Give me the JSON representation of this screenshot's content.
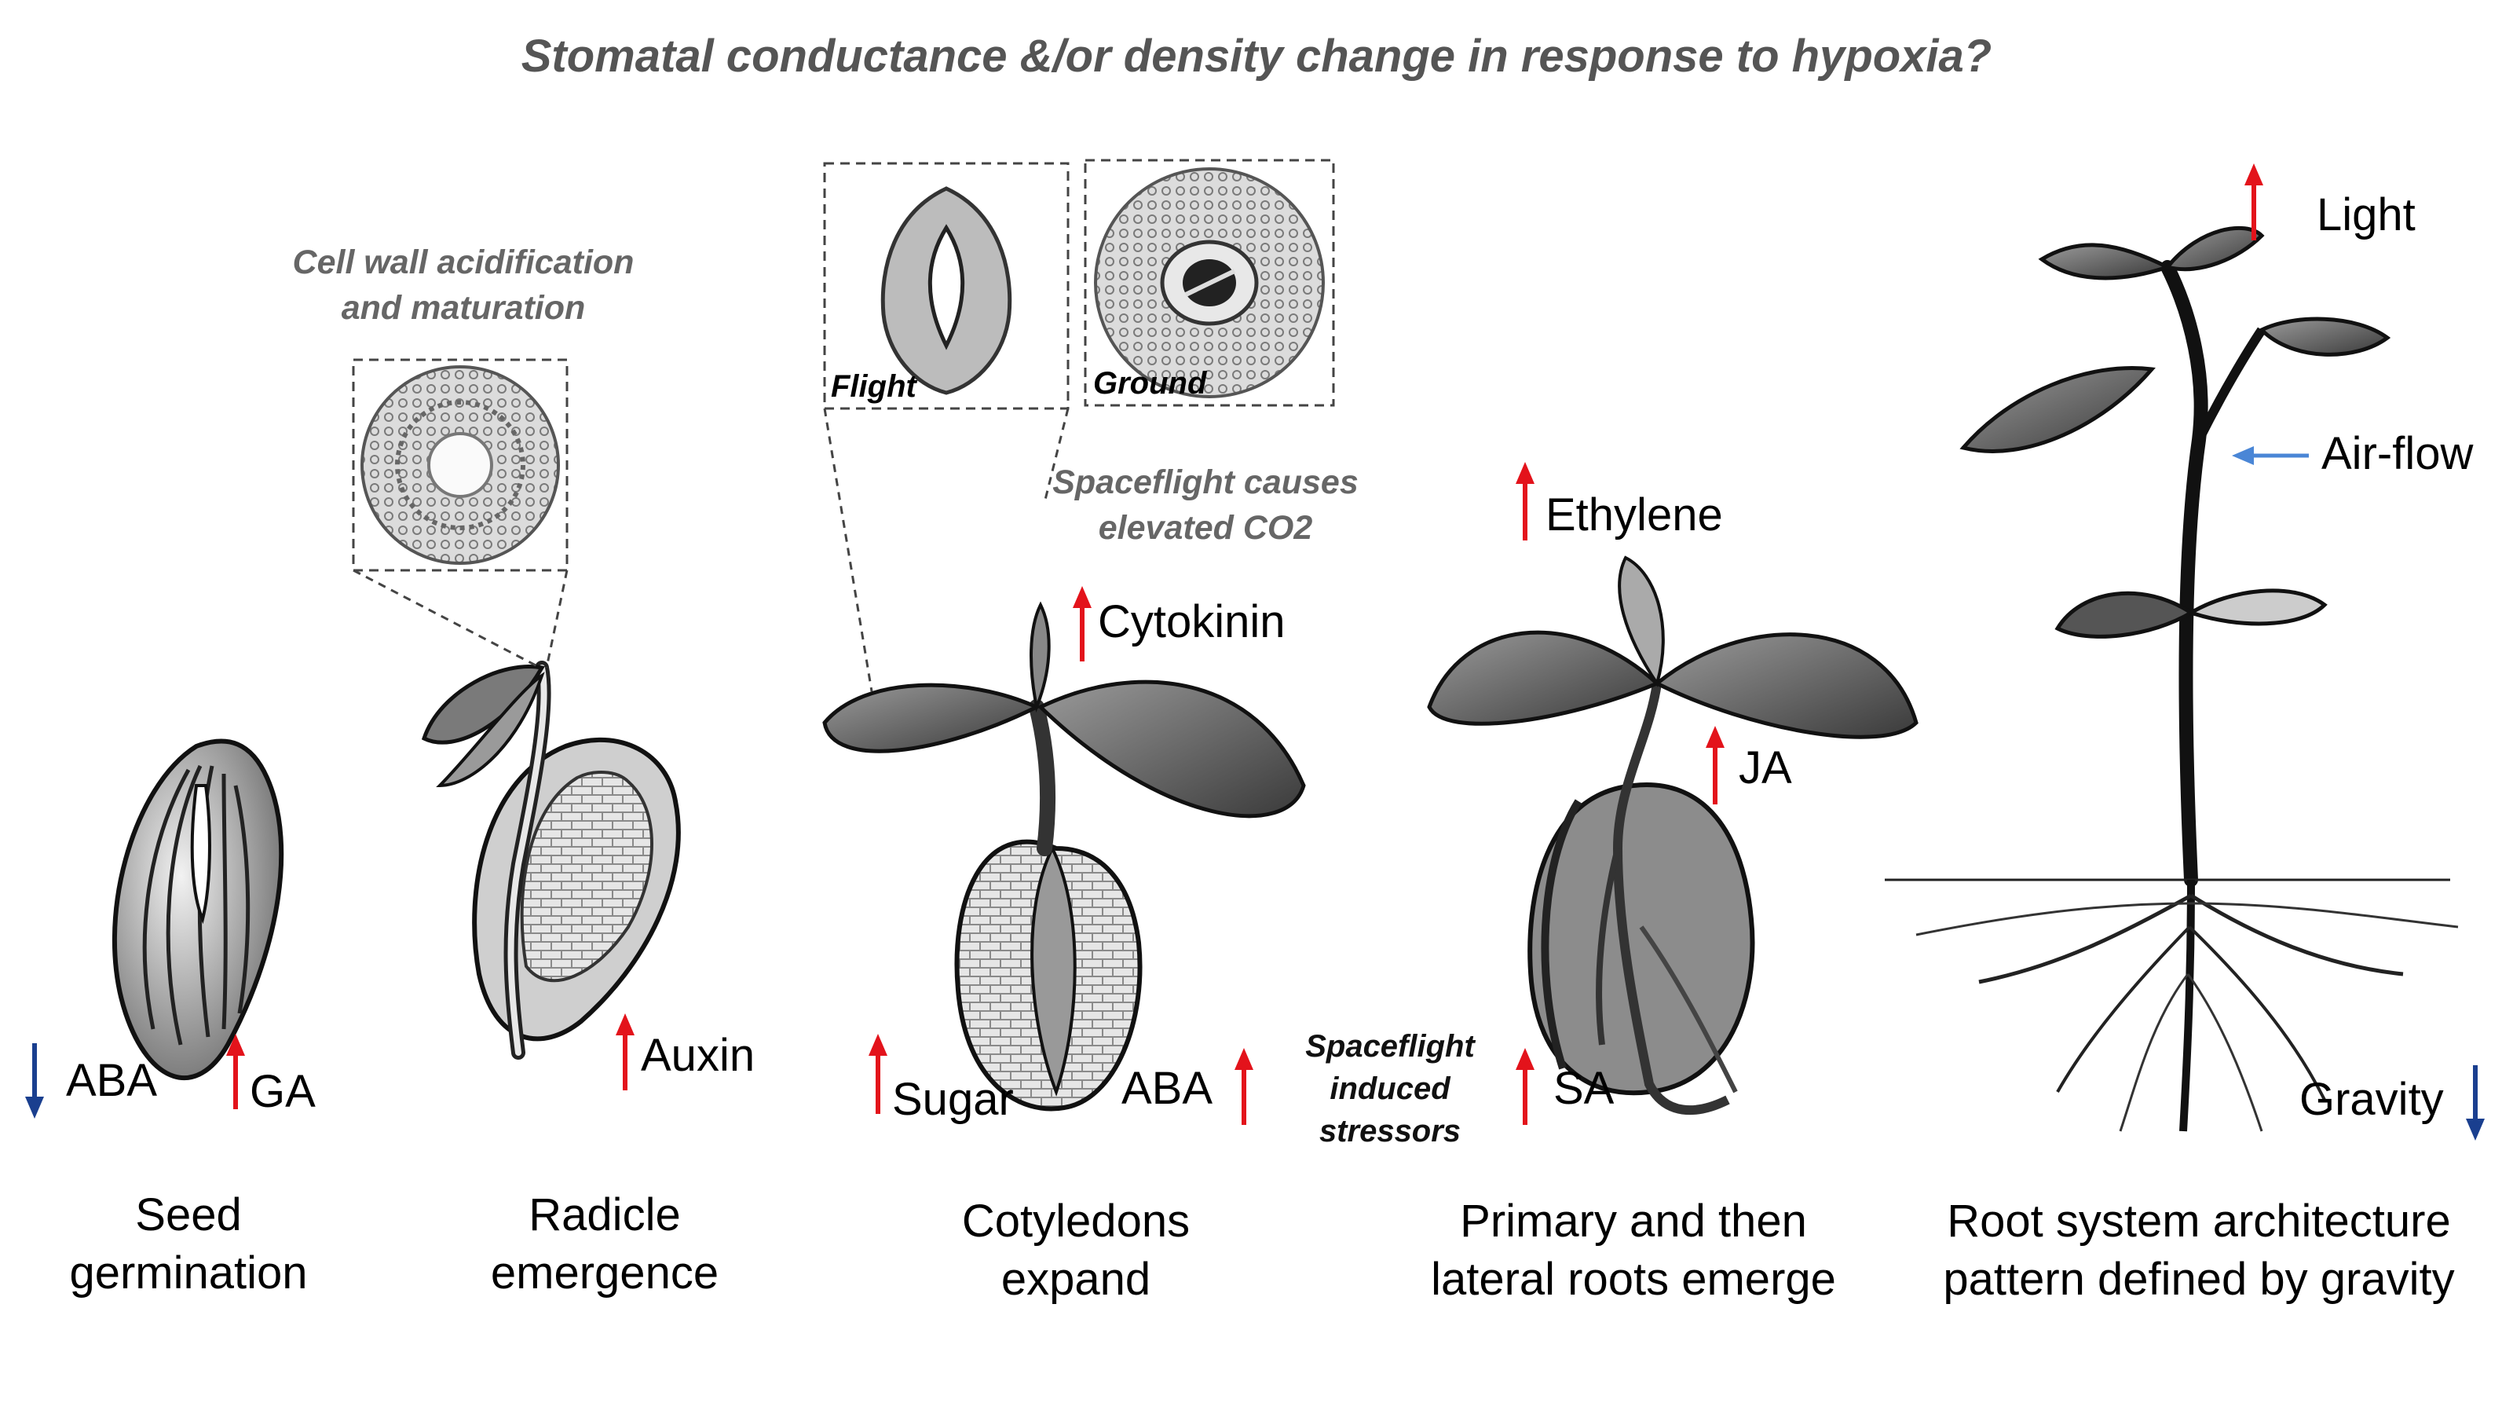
{
  "title": "Stomatal conductance &/or density change in response to hypoxia?",
  "notes": {
    "cell_wall": "Cell wall acidification and maturation",
    "spaceflight_co2": "Spaceflight causes elevated CO2",
    "spaceflight_stress": "Spaceflight induced stressors"
  },
  "insets": {
    "flight": "Flight",
    "ground": "Ground"
  },
  "stages": [
    {
      "label": "Seed germination"
    },
    {
      "label": "Radicle emergence"
    },
    {
      "label": "Cotyledons expand"
    },
    {
      "label": "Primary and then lateral roots emerge"
    },
    {
      "label": "Root system architecture pattern defined by gravity"
    }
  ],
  "factors": {
    "aba_1": {
      "label": "ABA",
      "direction": "down"
    },
    "ga": {
      "label": "GA",
      "direction": "up"
    },
    "auxin": {
      "label": "Auxin",
      "direction": "up"
    },
    "cytokinin": {
      "label": "Cytokinin",
      "direction": "up"
    },
    "sugar": {
      "label": "Sugar",
      "direction": "up"
    },
    "aba_2": {
      "label": "ABA",
      "direction": "up"
    },
    "ethylene": {
      "label": "Ethylene",
      "direction": "up"
    },
    "ja": {
      "label": "JA",
      "direction": "up"
    },
    "sa": {
      "label": "SA",
      "direction": "up"
    },
    "light": {
      "label": "Light",
      "direction": "up"
    },
    "airflow": {
      "label": "Air-flow",
      "direction": "left"
    },
    "gravity": {
      "label": "Gravity",
      "direction": "down"
    }
  },
  "colors": {
    "up_arrow": "#e3131b",
    "down_arrow": "#1a3f8f",
    "air_arrow": "#4a86d6",
    "note_gray": "#666666"
  }
}
